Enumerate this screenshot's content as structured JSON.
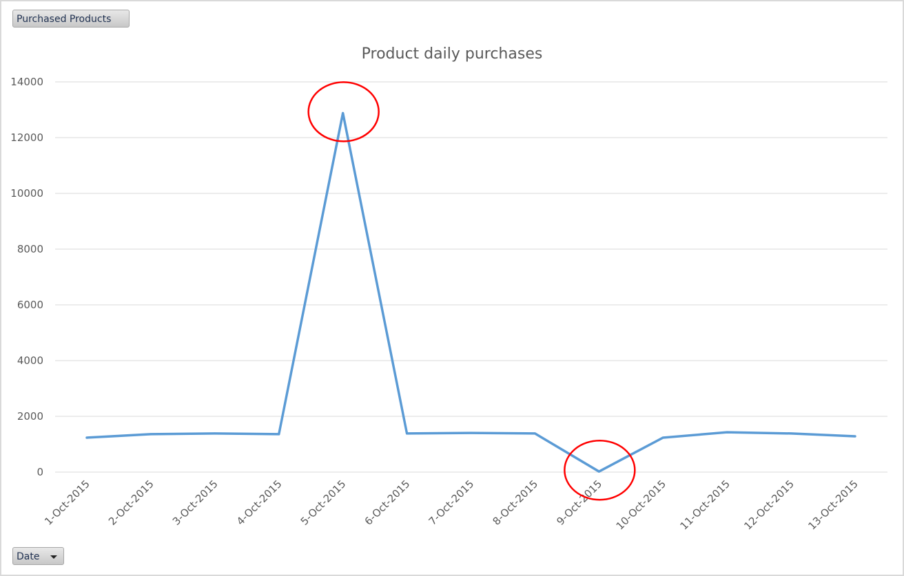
{
  "field_buttons": {
    "values_field": "Purchased Products",
    "axis_field": "Date"
  },
  "chart_data": {
    "type": "line",
    "title": "Product daily purchases",
    "xlabel": "",
    "ylabel": "",
    "categories": [
      "1-Oct-2015",
      "2-Oct-2015",
      "3-Oct-2015",
      "4-Oct-2015",
      "5-Oct-2015",
      "6-Oct-2015",
      "7-Oct-2015",
      "8-Oct-2015",
      "9-Oct-2015",
      "10-Oct-2015",
      "11-Oct-2015",
      "12-Oct-2015",
      "13-Oct-2015"
    ],
    "series": [
      {
        "values": [
          1235,
          1360,
          1385,
          1360,
          12880,
          1385,
          1405,
          1385,
          20,
          1235,
          1430,
          1385,
          1285
        ],
        "color": "#5b9bd5"
      }
    ],
    "ylim": [
      0,
      14000
    ],
    "yticks": [
      0,
      2000,
      4000,
      6000,
      8000,
      10000,
      12000,
      14000
    ],
    "grid": true,
    "legend": "none",
    "annotations": [
      {
        "type": "circle",
        "category": "5-Oct-2015",
        "color": "#ff0000"
      },
      {
        "type": "circle",
        "category": "9-Oct-2015",
        "color": "#ff0000"
      }
    ]
  }
}
